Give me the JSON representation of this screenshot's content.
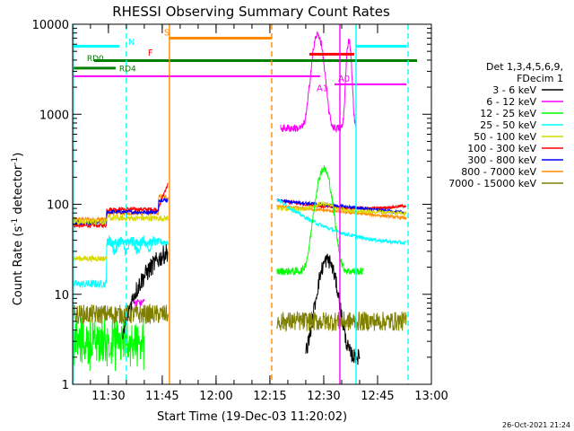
{
  "chart_data": {
    "type": "line",
    "title": "RHESSI Observing Summary Count Rates",
    "xlabel": "Start Time (19-Dec-03 11:20:02)",
    "ylabel": "Count Rate (s⁻¹ detector⁻¹)",
    "ylabel_main": "Count Rate (s",
    "ylabel_sup1": "-1",
    "ylabel_mid": " detector",
    "ylabel_sup2": "-1",
    "ylabel_end": ")",
    "yscale": "log",
    "xlim": [
      "11:20:02",
      "13:00"
    ],
    "ylim": [
      1,
      10000
    ],
    "x_ticks": [
      "11:30",
      "11:45",
      "12:00",
      "12:15",
      "12:30",
      "12:45",
      "13:00"
    ],
    "y_ticks": [
      "1",
      "10",
      "100",
      "1000",
      "10000"
    ],
    "legend_placement": "right",
    "legend_header": [
      "Det 1,3,4,5,6,9,",
      "FDecim 1"
    ],
    "footer_timestamp": "26-Oct-2021 21:24",
    "series": [
      {
        "name": "3 - 6 keV",
        "color": "#000000"
      },
      {
        "name": "6 - 12 keV",
        "color": "#ff00ff"
      },
      {
        "name": "12 - 25 keV",
        "color": "#00ff00"
      },
      {
        "name": "25 - 50 keV",
        "color": "#00ffff"
      },
      {
        "name": "50 - 100 keV",
        "color": "#d8d800"
      },
      {
        "name": "100 - 300 keV",
        "color": "#ff0000"
      },
      {
        "name": "300 - 800 keV",
        "color": "#0000ff"
      },
      {
        "name": "800 - 7000 keV",
        "color": "#ff8c00"
      },
      {
        "name": "7000 - 15000 keV",
        "color": "#808000"
      }
    ],
    "flag_labels": [
      {
        "text": "N",
        "color": "#00ffff"
      },
      {
        "text": "S",
        "color": "#ff8c00"
      },
      {
        "text": "F",
        "color": "#ff0000"
      },
      {
        "text": "RD0",
        "color": "#008000"
      },
      {
        "text": "RD4",
        "color": "#008000"
      },
      {
        "text": "A1",
        "color": "#ff00ff"
      },
      {
        "text": "A0",
        "color": "#ff00ff"
      }
    ]
  }
}
